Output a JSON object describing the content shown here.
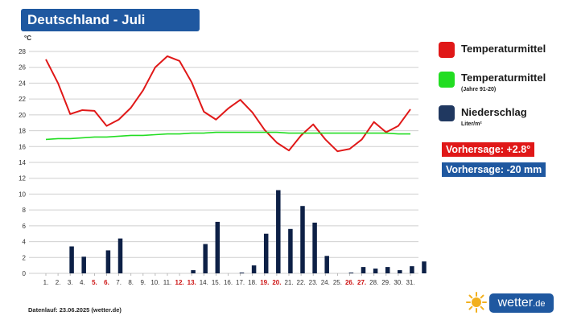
{
  "title": "Deutschland - Juli",
  "legend": {
    "temp": {
      "label": "Temperaturmittel",
      "sub": "",
      "color": "#e01818"
    },
    "clim": {
      "label": "Temperaturmittel",
      "sub": "(Jahre 91-20)",
      "color": "#22dd22"
    },
    "rain": {
      "label": "Niederschlag",
      "sub": "Liter/m²",
      "color": "#203860"
    }
  },
  "forecasts": {
    "temp": {
      "label": "Vorhersage: +2.8°",
      "color": "#e01818"
    },
    "rain": {
      "label": "Vorhersage: -20 mm",
      "color": "#1f58a0"
    }
  },
  "footer": "Datenlauf: 23.06.2025 (wetter.de)",
  "logo": {
    "text": "wetter",
    "suffix": ".de"
  },
  "chart_data": {
    "type": "line+bar",
    "unit_label": "°C",
    "ylim": [
      0,
      28
    ],
    "yticks": [
      0,
      2,
      4,
      6,
      8,
      10,
      12,
      14,
      16,
      18,
      20,
      22,
      24,
      26,
      28
    ],
    "grid": true,
    "categories": [
      "1.",
      "2.",
      "3.",
      "4.",
      "5.",
      "6.",
      "7.",
      "8.",
      "9.",
      "10.",
      "11.",
      "12.",
      "13.",
      "14.",
      "15.",
      "16.",
      "17.",
      "18.",
      "19.",
      "20.",
      "21.",
      "22.",
      "23.",
      "24.",
      "25.",
      "26.",
      "27.",
      "28.",
      "29.",
      "30.",
      "31."
    ],
    "weekend_days": [
      "5.",
      "6.",
      "12.",
      "13.",
      "19.",
      "20.",
      "26.",
      "27."
    ],
    "weekend_color": "#cc1111",
    "series": [
      {
        "name": "Temperaturmittel",
        "type": "line",
        "color": "#e01818",
        "values": [
          27.0,
          24.0,
          20.1,
          20.6,
          20.5,
          18.6,
          19.4,
          20.9,
          23.1,
          26.0,
          27.4,
          26.8,
          24.1,
          20.4,
          19.4,
          20.8,
          21.9,
          20.3,
          18.1,
          16.5,
          15.5,
          17.4,
          18.8,
          16.9,
          15.4,
          15.7,
          16.9,
          19.1,
          17.8,
          18.6,
          20.7
        ]
      },
      {
        "name": "Temperaturmittel (Jahre 91-20)",
        "type": "line",
        "color": "#22dd22",
        "values": [
          16.9,
          17.0,
          17.0,
          17.1,
          17.2,
          17.2,
          17.3,
          17.4,
          17.4,
          17.5,
          17.6,
          17.6,
          17.7,
          17.7,
          17.8,
          17.8,
          17.8,
          17.8,
          17.8,
          17.8,
          17.7,
          17.7,
          17.7,
          17.7,
          17.7,
          17.7,
          17.7,
          17.7,
          17.7,
          17.6,
          17.6
        ]
      },
      {
        "name": "Niederschlag",
        "type": "bar",
        "color": "#0d2046",
        "values": [
          0,
          3.4,
          2.1,
          0,
          2.9,
          4.4,
          0,
          0,
          0,
          0,
          0,
          0.4,
          3.7,
          6.5,
          0,
          0.1,
          1.0,
          5.0,
          10.5,
          5.6,
          8.5,
          6.4,
          2.2,
          0,
          0.1,
          0.8,
          0.6,
          0.8,
          0.4,
          0.9,
          1.5
        ]
      }
    ]
  }
}
